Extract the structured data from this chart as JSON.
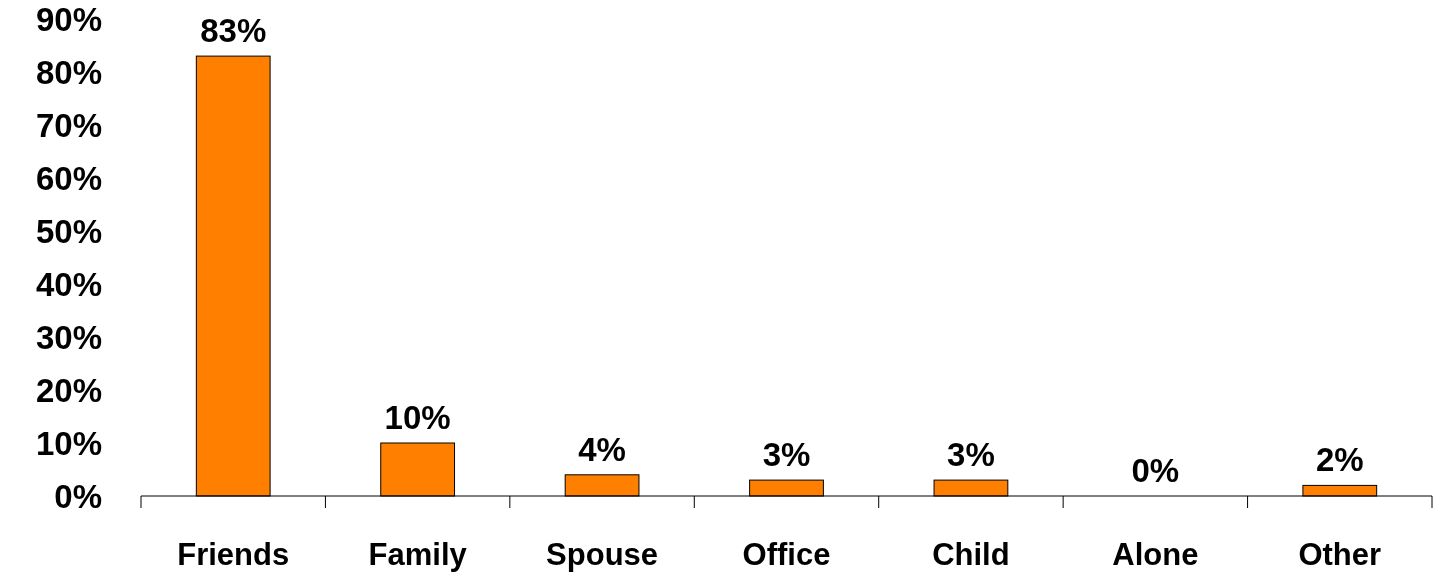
{
  "chart_data": {
    "type": "bar",
    "categories": [
      "Friends",
      "Family",
      "Spouse",
      "Office",
      "Child",
      "Alone",
      "Other"
    ],
    "values": [
      83,
      10,
      4,
      3,
      3,
      0,
      2
    ],
    "color": "#ff8000",
    "value_labels": [
      "83%",
      "10%",
      "4%",
      "3%",
      "3%",
      "0%",
      "2%"
    ],
    "ylim": [
      0,
      90
    ],
    "yticks": [
      {
        "value": 0,
        "label": "0%"
      },
      {
        "value": 10,
        "label": "10%"
      },
      {
        "value": 20,
        "label": "20%"
      },
      {
        "value": 30,
        "label": "30%"
      },
      {
        "value": 40,
        "label": "40%"
      },
      {
        "value": 50,
        "label": "50%"
      },
      {
        "value": 60,
        "label": "60%"
      },
      {
        "value": 70,
        "label": "70%"
      },
      {
        "value": 80,
        "label": "80%"
      },
      {
        "value": 90,
        "label": "90%"
      }
    ],
    "grid": false
  }
}
